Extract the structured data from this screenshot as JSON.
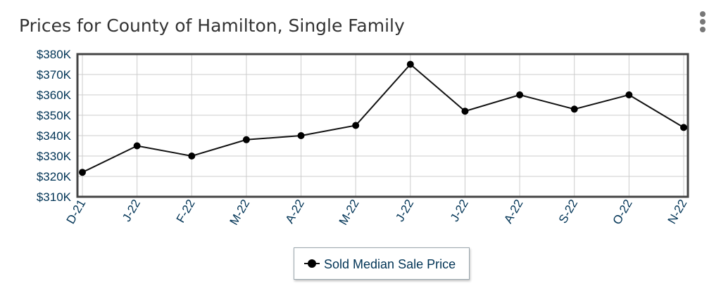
{
  "title": "Prices for County of Hamilton, Single Family",
  "menu_icon": "more-vertical-icon",
  "colors": {
    "axis_text": "#003355",
    "series_line": "#111111",
    "frame": "#444444",
    "grid": "#cccccc"
  },
  "chart_data": {
    "type": "line",
    "title": "Prices for County of Hamilton, Single Family",
    "categories": [
      "D-21",
      "J-22",
      "F-22",
      "M-22",
      "A-22",
      "M-22",
      "J-22",
      "J-22",
      "A-22",
      "S-22",
      "O-22",
      "N-22"
    ],
    "series": [
      {
        "name": "Sold Median Sale Price",
        "values": [
          322000,
          335000,
          330000,
          338000,
          340000,
          345000,
          375000,
          352000,
          360000,
          353000,
          360000,
          344000
        ]
      }
    ],
    "ylim": [
      310000,
      380000
    ],
    "yticks": [
      310000,
      320000,
      330000,
      340000,
      350000,
      360000,
      370000,
      380000
    ],
    "ytick_labels": [
      "$310K",
      "$320K",
      "$330K",
      "$340K",
      "$350K",
      "$360K",
      "$370K",
      "$380K"
    ],
    "grid": true,
    "legend": "bottom-center"
  }
}
